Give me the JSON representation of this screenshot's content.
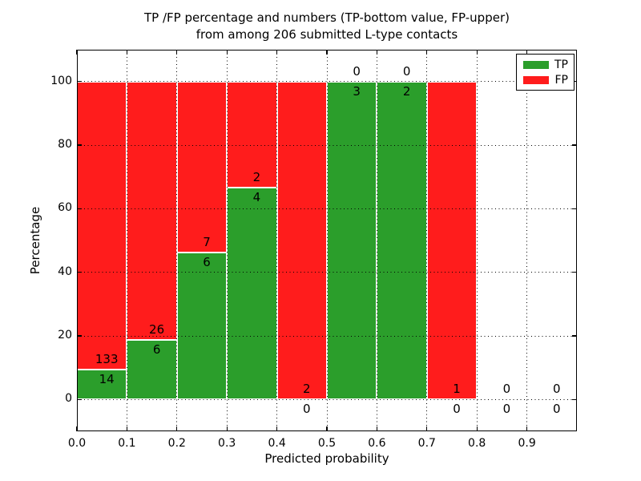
{
  "title": {
    "line1": "TP /FP percentage and numbers (TP-bottom value, FP-upper)",
    "line2": "from among 206 submitted L-type contacts"
  },
  "axes": {
    "xlabel": "Predicted probability",
    "ylabel": "Percentage",
    "x_tick_labels": [
      "0.0",
      "0.1",
      "0.2",
      "0.3",
      "0.4",
      "0.5",
      "0.6",
      "0.7",
      "0.8",
      "0.9"
    ],
    "y_tick_labels": [
      "0",
      "20",
      "40",
      "60",
      "80",
      "100"
    ],
    "grid": "dotted"
  },
  "legend": {
    "position": "upper-right",
    "items": [
      {
        "label": "TP",
        "color": "#2b9e2b"
      },
      {
        "label": "FP",
        "color": "#ff1c1c"
      }
    ]
  },
  "colors": {
    "tp": "#2b9e2b",
    "fp": "#ff1c1c",
    "bar_edge": "#ffffff",
    "grid": "#000000",
    "text": "#000000",
    "background": "#ffffff"
  },
  "chart_data": {
    "type": "bar",
    "stacked": true,
    "title": "TP /FP percentage and numbers (TP-bottom value, FP-upper) from among 206 submitted L-type contacts",
    "xlabel": "Predicted probability",
    "ylabel": "Percentage",
    "xlim": [
      0.0,
      1.0
    ],
    "ylim": [
      -10,
      110
    ],
    "total_submitted": 206,
    "bin_width": 0.1,
    "categories": [
      "0.0-0.1",
      "0.1-0.2",
      "0.2-0.3",
      "0.3-0.4",
      "0.4-0.5",
      "0.5-0.6",
      "0.6-0.7",
      "0.7-0.8",
      "0.8-0.9",
      "0.9-1.0"
    ],
    "series": [
      {
        "name": "TP",
        "counts": [
          14,
          6,
          6,
          4,
          0,
          3,
          2,
          0,
          0,
          0
        ]
      },
      {
        "name": "FP",
        "counts": [
          133,
          26,
          7,
          2,
          2,
          0,
          0,
          1,
          0,
          0
        ]
      }
    ],
    "bins": [
      {
        "x0": 0.0,
        "x1": 0.1,
        "tp": 14,
        "fp": 133
      },
      {
        "x0": 0.1,
        "x1": 0.2,
        "tp": 6,
        "fp": 26
      },
      {
        "x0": 0.2,
        "x1": 0.3,
        "tp": 6,
        "fp": 7
      },
      {
        "x0": 0.3,
        "x1": 0.4,
        "tp": 4,
        "fp": 2
      },
      {
        "x0": 0.4,
        "x1": 0.5,
        "tp": 0,
        "fp": 2
      },
      {
        "x0": 0.5,
        "x1": 0.6,
        "tp": 3,
        "fp": 0
      },
      {
        "x0": 0.6,
        "x1": 0.7,
        "tp": 2,
        "fp": 0
      },
      {
        "x0": 0.7,
        "x1": 0.8,
        "tp": 0,
        "fp": 1
      },
      {
        "x0": 0.8,
        "x1": 0.9,
        "tp": 0,
        "fp": 0
      },
      {
        "x0": 0.9,
        "x1": 1.0,
        "tp": 0,
        "fp": 0
      }
    ]
  }
}
